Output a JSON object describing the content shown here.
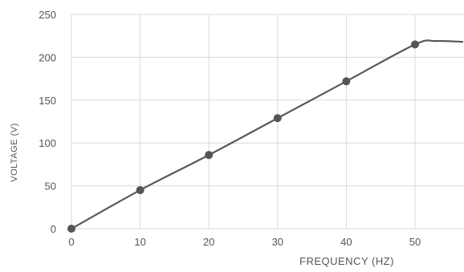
{
  "chart_data": {
    "type": "line",
    "title": "",
    "xlabel": "FREQUENCY (HZ)",
    "ylabel": "VOLTAGE (V)",
    "xlim": [
      0,
      57
    ],
    "ylim": [
      0,
      250
    ],
    "x_ticks": [
      0,
      10,
      20,
      30,
      40,
      50
    ],
    "y_ticks": [
      0,
      50,
      100,
      150,
      200,
      250
    ],
    "grid": true,
    "legend": "none",
    "series": [
      {
        "x": [
          0,
          10,
          20,
          30,
          40,
          50,
          53,
          57
        ],
        "y": [
          0,
          45,
          86,
          129,
          172,
          215,
          219,
          218
        ],
        "markers_at": [
          0,
          10,
          20,
          30,
          40,
          50
        ],
        "color": "#595959"
      }
    ]
  }
}
